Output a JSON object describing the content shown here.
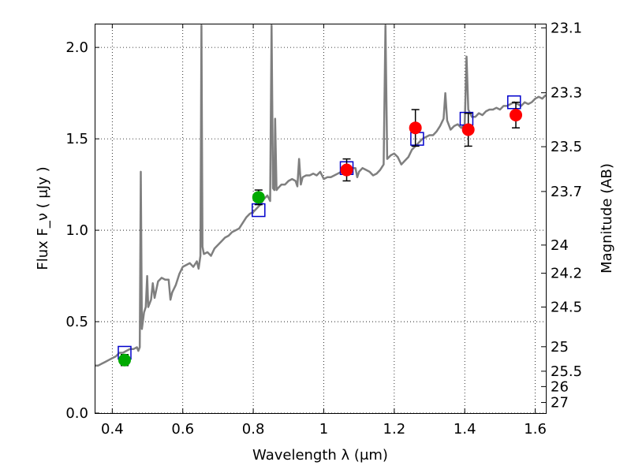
{
  "chart_data": {
    "type": "scatter",
    "xlabel": "Wavelength  λ (μm)",
    "ylabel": "Flux  F_ν  ( μJy )",
    "ylabel_right": "Magnitude (AB)",
    "xlim": [
      0.35,
      1.63
    ],
    "ylim": [
      0.0,
      2.13
    ],
    "grid": true,
    "x_ticks": [
      0.4,
      0.6,
      0.8,
      1.0,
      1.2,
      1.4,
      1.6
    ],
    "x_tick_labels": [
      "0.4",
      "0.6",
      "0.8",
      "1",
      "1.2",
      "1.4",
      "1.6"
    ],
    "y_ticks": [
      0.0,
      0.5,
      1.0,
      1.5,
      2.0
    ],
    "y_tick_labels": [
      "0.0",
      "0.5",
      "1.0",
      "1.5",
      "2.0"
    ],
    "right_ticks": [
      {
        "label": "23.1",
        "flux": 2.107
      },
      {
        "label": "23.3",
        "flux": 1.752
      },
      {
        "label": "23.5",
        "flux": 1.457
      },
      {
        "label": "23.7",
        "flux": 1.212
      },
      {
        "label": "24",
        "flux": 0.919
      },
      {
        "label": "24.2",
        "flux": 0.765
      },
      {
        "label": "24.5",
        "flux": 0.58
      },
      {
        "label": "25",
        "flux": 0.363
      },
      {
        "label": "25.5",
        "flux": 0.229
      },
      {
        "label": "26",
        "flux": 0.145
      },
      {
        "label": "27",
        "flux": 0.058
      }
    ],
    "series": [
      {
        "name": "model spectrum",
        "kind": "line",
        "color": "#7f7f7f",
        "points": [
          [
            0.35,
            0.26
          ],
          [
            0.36,
            0.26
          ],
          [
            0.37,
            0.27
          ],
          [
            0.38,
            0.28
          ],
          [
            0.39,
            0.29
          ],
          [
            0.4,
            0.3
          ],
          [
            0.41,
            0.31
          ],
          [
            0.42,
            0.33
          ],
          [
            0.43,
            0.33
          ],
          [
            0.44,
            0.34
          ],
          [
            0.45,
            0.35
          ],
          [
            0.46,
            0.35
          ],
          [
            0.47,
            0.36
          ],
          [
            0.474,
            0.34
          ],
          [
            0.478,
            0.36
          ],
          [
            0.481,
            1.32
          ],
          [
            0.484,
            0.46
          ],
          [
            0.49,
            0.55
          ],
          [
            0.495,
            0.58
          ],
          [
            0.499,
            0.75
          ],
          [
            0.502,
            0.58
          ],
          [
            0.51,
            0.62
          ],
          [
            0.515,
            0.71
          ],
          [
            0.52,
            0.63
          ],
          [
            0.53,
            0.72
          ],
          [
            0.54,
            0.74
          ],
          [
            0.55,
            0.73
          ],
          [
            0.56,
            0.73
          ],
          [
            0.565,
            0.62
          ],
          [
            0.57,
            0.66
          ],
          [
            0.58,
            0.7
          ],
          [
            0.59,
            0.76
          ],
          [
            0.6,
            0.8
          ],
          [
            0.61,
            0.81
          ],
          [
            0.62,
            0.82
          ],
          [
            0.63,
            0.8
          ],
          [
            0.64,
            0.83
          ],
          [
            0.645,
            0.79
          ],
          [
            0.65,
            0.86
          ],
          [
            0.653,
            2.12
          ],
          [
            0.656,
            0.91
          ],
          [
            0.66,
            0.87
          ],
          [
            0.67,
            0.88
          ],
          [
            0.68,
            0.86
          ],
          [
            0.69,
            0.9
          ],
          [
            0.7,
            0.92
          ],
          [
            0.71,
            0.94
          ],
          [
            0.72,
            0.96
          ],
          [
            0.73,
            0.97
          ],
          [
            0.74,
            0.99
          ],
          [
            0.75,
            1.0
          ],
          [
            0.76,
            1.01
          ],
          [
            0.77,
            1.04
          ],
          [
            0.78,
            1.07
          ],
          [
            0.79,
            1.09
          ],
          [
            0.8,
            1.1
          ],
          [
            0.81,
            1.12
          ],
          [
            0.82,
            1.14
          ],
          [
            0.83,
            1.17
          ],
          [
            0.84,
            1.19
          ],
          [
            0.848,
            1.16
          ],
          [
            0.852,
            2.12
          ],
          [
            0.856,
            1.23
          ],
          [
            0.86,
            1.22
          ],
          [
            0.862,
            1.61
          ],
          [
            0.866,
            1.22
          ],
          [
            0.87,
            1.23
          ],
          [
            0.88,
            1.25
          ],
          [
            0.89,
            1.25
          ],
          [
            0.9,
            1.27
          ],
          [
            0.91,
            1.28
          ],
          [
            0.92,
            1.27
          ],
          [
            0.925,
            1.24
          ],
          [
            0.93,
            1.39
          ],
          [
            0.935,
            1.25
          ],
          [
            0.94,
            1.29
          ],
          [
            0.95,
            1.3
          ],
          [
            0.96,
            1.3
          ],
          [
            0.97,
            1.31
          ],
          [
            0.98,
            1.3
          ],
          [
            0.99,
            1.32
          ],
          [
            1.0,
            1.28
          ],
          [
            1.01,
            1.29
          ],
          [
            1.02,
            1.29
          ],
          [
            1.03,
            1.3
          ],
          [
            1.04,
            1.31
          ],
          [
            1.05,
            1.32
          ],
          [
            1.06,
            1.33
          ],
          [
            1.07,
            1.34
          ],
          [
            1.08,
            1.34
          ],
          [
            1.09,
            1.34
          ],
          [
            1.095,
            1.29
          ],
          [
            1.1,
            1.32
          ],
          [
            1.11,
            1.34
          ],
          [
            1.12,
            1.33
          ],
          [
            1.13,
            1.32
          ],
          [
            1.14,
            1.3
          ],
          [
            1.15,
            1.31
          ],
          [
            1.16,
            1.33
          ],
          [
            1.17,
            1.36
          ],
          [
            1.175,
            2.12
          ],
          [
            1.18,
            1.39
          ],
          [
            1.19,
            1.41
          ],
          [
            1.2,
            1.42
          ],
          [
            1.21,
            1.4
          ],
          [
            1.22,
            1.36
          ],
          [
            1.23,
            1.38
          ],
          [
            1.24,
            1.4
          ],
          [
            1.25,
            1.44
          ],
          [
            1.26,
            1.46
          ],
          [
            1.27,
            1.48
          ],
          [
            1.28,
            1.5
          ],
          [
            1.29,
            1.51
          ],
          [
            1.3,
            1.52
          ],
          [
            1.31,
            1.52
          ],
          [
            1.32,
            1.54
          ],
          [
            1.33,
            1.57
          ],
          [
            1.34,
            1.61
          ],
          [
            1.345,
            1.75
          ],
          [
            1.35,
            1.6
          ],
          [
            1.36,
            1.55
          ],
          [
            1.37,
            1.57
          ],
          [
            1.38,
            1.58
          ],
          [
            1.39,
            1.56
          ],
          [
            1.4,
            1.58
          ],
          [
            1.405,
            1.95
          ],
          [
            1.41,
            1.66
          ],
          [
            1.42,
            1.62
          ],
          [
            1.43,
            1.62
          ],
          [
            1.44,
            1.64
          ],
          [
            1.45,
            1.63
          ],
          [
            1.46,
            1.65
          ],
          [
            1.47,
            1.66
          ],
          [
            1.48,
            1.66
          ],
          [
            1.49,
            1.67
          ],
          [
            1.5,
            1.66
          ],
          [
            1.51,
            1.68
          ],
          [
            1.52,
            1.68
          ],
          [
            1.53,
            1.69
          ],
          [
            1.54,
            1.7
          ],
          [
            1.55,
            1.69
          ],
          [
            1.56,
            1.68
          ],
          [
            1.57,
            1.7
          ],
          [
            1.58,
            1.69
          ],
          [
            1.59,
            1.7
          ],
          [
            1.6,
            1.72
          ],
          [
            1.61,
            1.73
          ],
          [
            1.62,
            1.72
          ],
          [
            1.63,
            1.74
          ]
        ]
      },
      {
        "name": "model photometry",
        "kind": "scatter",
        "marker": "open-square",
        "color": "#0000cc",
        "points": [
          [
            0.435,
            0.33
          ],
          [
            0.815,
            1.11
          ],
          [
            1.065,
            1.34
          ],
          [
            1.265,
            1.5
          ],
          [
            1.405,
            1.61
          ],
          [
            1.54,
            1.7
          ]
        ]
      },
      {
        "name": "optical photometry",
        "kind": "scatter",
        "marker": "filled-circle",
        "color": "#00aa00",
        "points": [
          {
            "x": 0.435,
            "y": 0.29,
            "err": 0.03
          },
          {
            "x": 0.815,
            "y": 1.18,
            "err": 0.04
          }
        ]
      },
      {
        "name": "near-IR photometry",
        "kind": "scatter",
        "marker": "filled-circle",
        "color": "#ff0000",
        "points": [
          {
            "x": 1.065,
            "y": 1.33,
            "err": 0.06
          },
          {
            "x": 1.26,
            "y": 1.56,
            "err": 0.1
          },
          {
            "x": 1.41,
            "y": 1.55,
            "err": 0.09
          },
          {
            "x": 1.545,
            "y": 1.63,
            "err": 0.07
          }
        ]
      }
    ]
  }
}
